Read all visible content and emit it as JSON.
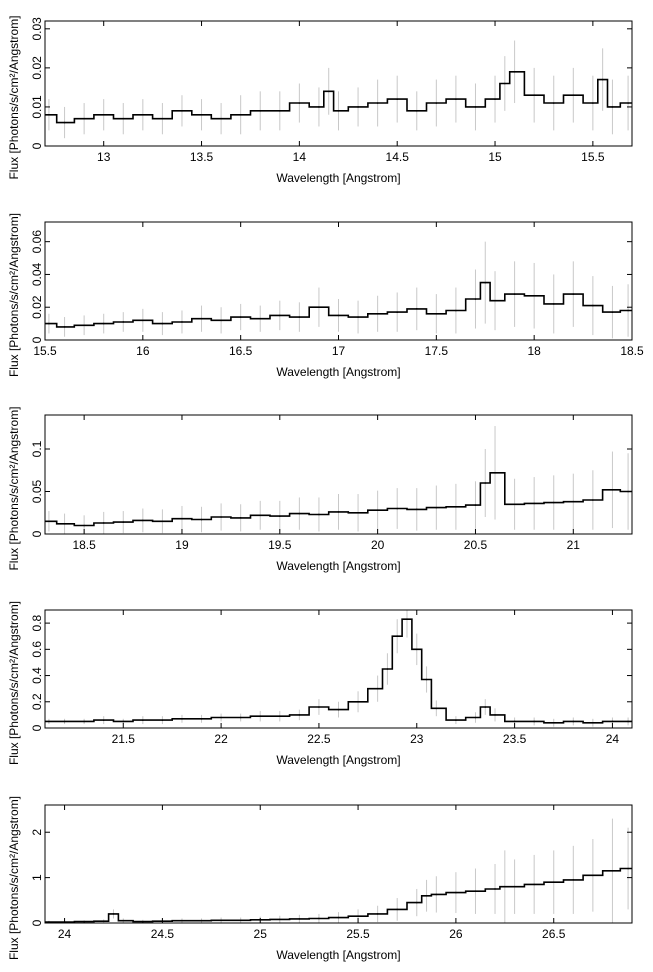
{
  "figure": {
    "background": "#ffffff",
    "line_color": "#000000",
    "errorbar_color": "#c8c8c8"
  },
  "chart_data": [
    {
      "type": "line",
      "style": "step-histogram-with-errorbars",
      "xlabel": "Wavelength [Angstrom]",
      "ylabel": "Flux [Photons/s/cm²/Angstrom]",
      "xlim": [
        12.7,
        15.7
      ],
      "ylim": [
        0,
        0.032
      ],
      "xticks": [
        13,
        13.5,
        14,
        14.5,
        15,
        15.5
      ],
      "xtick_labels": [
        "13",
        "13.5",
        "14",
        "14.5",
        "15",
        "15.5"
      ],
      "yticks": [
        0,
        0.01,
        0.02,
        0.03
      ],
      "ytick_labels": [
        "0",
        "0.01",
        "0.02",
        "0.03"
      ],
      "grid": false,
      "series": [
        {
          "x": [
            12.72,
            12.8,
            12.9,
            13.0,
            13.1,
            13.2,
            13.3,
            13.4,
            13.5,
            13.6,
            13.7,
            13.8,
            13.9,
            14.0,
            14.1,
            14.15,
            14.2,
            14.3,
            14.4,
            14.5,
            14.6,
            14.7,
            14.8,
            14.9,
            15.0,
            15.05,
            15.1,
            15.2,
            15.3,
            15.4,
            15.5,
            15.55,
            15.6,
            15.68
          ],
          "y": [
            0.008,
            0.006,
            0.007,
            0.008,
            0.007,
            0.008,
            0.007,
            0.009,
            0.008,
            0.007,
            0.008,
            0.009,
            0.009,
            0.011,
            0.01,
            0.014,
            0.009,
            0.01,
            0.011,
            0.012,
            0.009,
            0.011,
            0.012,
            0.01,
            0.012,
            0.016,
            0.019,
            0.013,
            0.011,
            0.013,
            0.011,
            0.017,
            0.01,
            0.011
          ],
          "err": [
            0.004,
            0.004,
            0.004,
            0.004,
            0.004,
            0.004,
            0.004,
            0.004,
            0.004,
            0.004,
            0.005,
            0.005,
            0.005,
            0.005,
            0.005,
            0.006,
            0.005,
            0.005,
            0.006,
            0.006,
            0.005,
            0.006,
            0.006,
            0.006,
            0.006,
            0.007,
            0.008,
            0.007,
            0.007,
            0.007,
            0.007,
            0.008,
            0.007,
            0.007
          ]
        }
      ]
    },
    {
      "type": "line",
      "style": "step-histogram-with-errorbars",
      "xlabel": "Wavelength [Angstrom]",
      "ylabel": "Flux [Photons/s/cm²/Angstrom]",
      "xlim": [
        15.5,
        18.5
      ],
      "ylim": [
        0,
        0.072
      ],
      "xticks": [
        15.5,
        16,
        16.5,
        17,
        17.5,
        18,
        18.5
      ],
      "xtick_labels": [
        "15.5",
        "16",
        "16.5",
        "17",
        "17.5",
        "18",
        "18.5"
      ],
      "yticks": [
        0,
        0.02,
        0.04,
        0.06
      ],
      "ytick_labels": [
        "0",
        "0.02",
        "0.04",
        "0.06"
      ],
      "grid": false,
      "series": [
        {
          "x": [
            15.52,
            15.6,
            15.7,
            15.8,
            15.9,
            16.0,
            16.1,
            16.2,
            16.3,
            16.4,
            16.5,
            16.6,
            16.7,
            16.8,
            16.9,
            17.0,
            17.1,
            17.2,
            17.3,
            17.4,
            17.5,
            17.6,
            17.7,
            17.75,
            17.8,
            17.9,
            18.0,
            18.1,
            18.2,
            18.3,
            18.4,
            18.48
          ],
          "y": [
            0.01,
            0.008,
            0.009,
            0.01,
            0.011,
            0.012,
            0.01,
            0.011,
            0.013,
            0.012,
            0.014,
            0.013,
            0.015,
            0.014,
            0.02,
            0.015,
            0.014,
            0.016,
            0.017,
            0.019,
            0.016,
            0.018,
            0.025,
            0.035,
            0.024,
            0.028,
            0.027,
            0.022,
            0.028,
            0.021,
            0.017,
            0.018
          ],
          "err": [
            0.006,
            0.006,
            0.006,
            0.006,
            0.006,
            0.007,
            0.007,
            0.007,
            0.008,
            0.008,
            0.008,
            0.008,
            0.009,
            0.009,
            0.012,
            0.01,
            0.01,
            0.011,
            0.012,
            0.013,
            0.012,
            0.014,
            0.018,
            0.025,
            0.018,
            0.02,
            0.02,
            0.018,
            0.02,
            0.018,
            0.016,
            0.016
          ]
        }
      ]
    },
    {
      "type": "line",
      "style": "step-histogram-with-errorbars",
      "xlabel": "Wavelength [Angstrom]",
      "ylabel": "Flux [Photons/s/cm²/Angstrom]",
      "xlim": [
        18.3,
        21.3
      ],
      "ylim": [
        0,
        0.14
      ],
      "xticks": [
        18.5,
        19,
        19.5,
        20,
        20.5,
        21
      ],
      "xtick_labels": [
        "18.5",
        "19",
        "19.5",
        "20",
        "20.5",
        "21"
      ],
      "yticks": [
        0,
        0.05,
        0.1
      ],
      "ytick_labels": [
        "0",
        "0.05",
        "0.1"
      ],
      "grid": false,
      "series": [
        {
          "x": [
            18.32,
            18.4,
            18.5,
            18.6,
            18.7,
            18.8,
            18.9,
            19.0,
            19.1,
            19.2,
            19.3,
            19.4,
            19.5,
            19.6,
            19.7,
            19.8,
            19.9,
            20.0,
            20.1,
            20.2,
            20.3,
            20.4,
            20.5,
            20.55,
            20.6,
            20.7,
            20.8,
            20.9,
            21.0,
            21.1,
            21.2,
            21.28
          ],
          "y": [
            0.015,
            0.012,
            0.01,
            0.013,
            0.014,
            0.016,
            0.015,
            0.018,
            0.017,
            0.02,
            0.019,
            0.022,
            0.021,
            0.024,
            0.023,
            0.026,
            0.025,
            0.028,
            0.03,
            0.029,
            0.031,
            0.032,
            0.034,
            0.06,
            0.072,
            0.035,
            0.036,
            0.037,
            0.038,
            0.04,
            0.052,
            0.05
          ],
          "err": [
            0.012,
            0.012,
            0.012,
            0.013,
            0.013,
            0.014,
            0.014,
            0.015,
            0.015,
            0.016,
            0.016,
            0.017,
            0.018,
            0.019,
            0.02,
            0.021,
            0.022,
            0.023,
            0.024,
            0.025,
            0.026,
            0.027,
            0.028,
            0.04,
            0.055,
            0.03,
            0.031,
            0.032,
            0.033,
            0.035,
            0.045,
            0.045
          ]
        }
      ]
    },
    {
      "type": "line",
      "style": "step-histogram-with-errorbars",
      "xlabel": "Wavelength [Angstrom]",
      "ylabel": "Flux [Photons/s/cm²/Angstrom]",
      "xlim": [
        21.1,
        24.1
      ],
      "ylim": [
        0,
        0.9
      ],
      "xticks": [
        21.5,
        22,
        22.5,
        23,
        23.5,
        24
      ],
      "xtick_labels": [
        "21.5",
        "22",
        "22.5",
        "23",
        "23.5",
        "24"
      ],
      "yticks": [
        0,
        0.2,
        0.4,
        0.6,
        0.8
      ],
      "ytick_labels": [
        "0",
        "0.2",
        "0.4",
        "0.6",
        "0.8"
      ],
      "grid": false,
      "series": [
        {
          "x": [
            21.12,
            21.2,
            21.3,
            21.4,
            21.5,
            21.6,
            21.7,
            21.8,
            21.9,
            22.0,
            22.1,
            22.2,
            22.3,
            22.4,
            22.5,
            22.6,
            22.7,
            22.8,
            22.85,
            22.9,
            22.95,
            23.0,
            23.05,
            23.1,
            23.2,
            23.3,
            23.35,
            23.4,
            23.5,
            23.6,
            23.7,
            23.8,
            23.9,
            24.0,
            24.08
          ],
          "y": [
            0.05,
            0.05,
            0.05,
            0.06,
            0.05,
            0.06,
            0.06,
            0.07,
            0.07,
            0.08,
            0.08,
            0.09,
            0.09,
            0.1,
            0.16,
            0.14,
            0.2,
            0.3,
            0.45,
            0.7,
            0.83,
            0.6,
            0.37,
            0.15,
            0.06,
            0.08,
            0.16,
            0.1,
            0.05,
            0.05,
            0.04,
            0.05,
            0.04,
            0.05,
            0.05
          ],
          "err": [
            0.02,
            0.02,
            0.02,
            0.03,
            0.02,
            0.03,
            0.03,
            0.03,
            0.03,
            0.03,
            0.03,
            0.04,
            0.04,
            0.04,
            0.06,
            0.06,
            0.08,
            0.1,
            0.12,
            0.13,
            0.14,
            0.12,
            0.1,
            0.06,
            0.03,
            0.04,
            0.06,
            0.05,
            0.03,
            0.03,
            0.03,
            0.03,
            0.03,
            0.03,
            0.03
          ]
        }
      ]
    },
    {
      "type": "line",
      "style": "step-histogram-with-errorbars",
      "xlabel": "Wavelength [Angstrom]",
      "ylabel": "Flux [Photons/s/cm²/Angstrom]",
      "xlim": [
        23.9,
        26.9
      ],
      "ylim": [
        0,
        2.6
      ],
      "xticks": [
        24,
        24.5,
        25,
        25.5,
        26,
        26.5
      ],
      "xtick_labels": [
        "24",
        "24.5",
        "25",
        "25.5",
        "26",
        "26.5"
      ],
      "yticks": [
        0,
        1,
        2
      ],
      "ytick_labels": [
        "0",
        "1",
        "2"
      ],
      "grid": false,
      "series": [
        {
          "x": [
            23.92,
            24.0,
            24.1,
            24.2,
            24.25,
            24.3,
            24.4,
            24.5,
            24.6,
            24.7,
            24.8,
            24.9,
            25.0,
            25.1,
            25.2,
            25.3,
            25.4,
            25.5,
            25.6,
            25.7,
            25.8,
            25.85,
            25.9,
            26.0,
            26.1,
            26.2,
            26.25,
            26.3,
            26.4,
            26.5,
            26.6,
            26.7,
            26.8,
            26.88
          ],
          "y": [
            0.02,
            0.02,
            0.03,
            0.04,
            0.2,
            0.05,
            0.03,
            0.04,
            0.05,
            0.05,
            0.06,
            0.06,
            0.07,
            0.08,
            0.09,
            0.1,
            0.12,
            0.15,
            0.2,
            0.3,
            0.45,
            0.6,
            0.63,
            0.67,
            0.7,
            0.75,
            0.8,
            0.8,
            0.85,
            0.9,
            0.95,
            1.05,
            1.15,
            1.2
          ],
          "err": [
            0.03,
            0.03,
            0.03,
            0.04,
            0.1,
            0.05,
            0.04,
            0.05,
            0.05,
            0.05,
            0.06,
            0.06,
            0.07,
            0.08,
            0.09,
            0.1,
            0.12,
            0.15,
            0.18,
            0.25,
            0.3,
            0.35,
            0.4,
            0.45,
            0.5,
            0.55,
            0.8,
            0.6,
            0.65,
            0.7,
            0.75,
            0.8,
            1.15,
            0.9
          ]
        }
      ]
    }
  ]
}
